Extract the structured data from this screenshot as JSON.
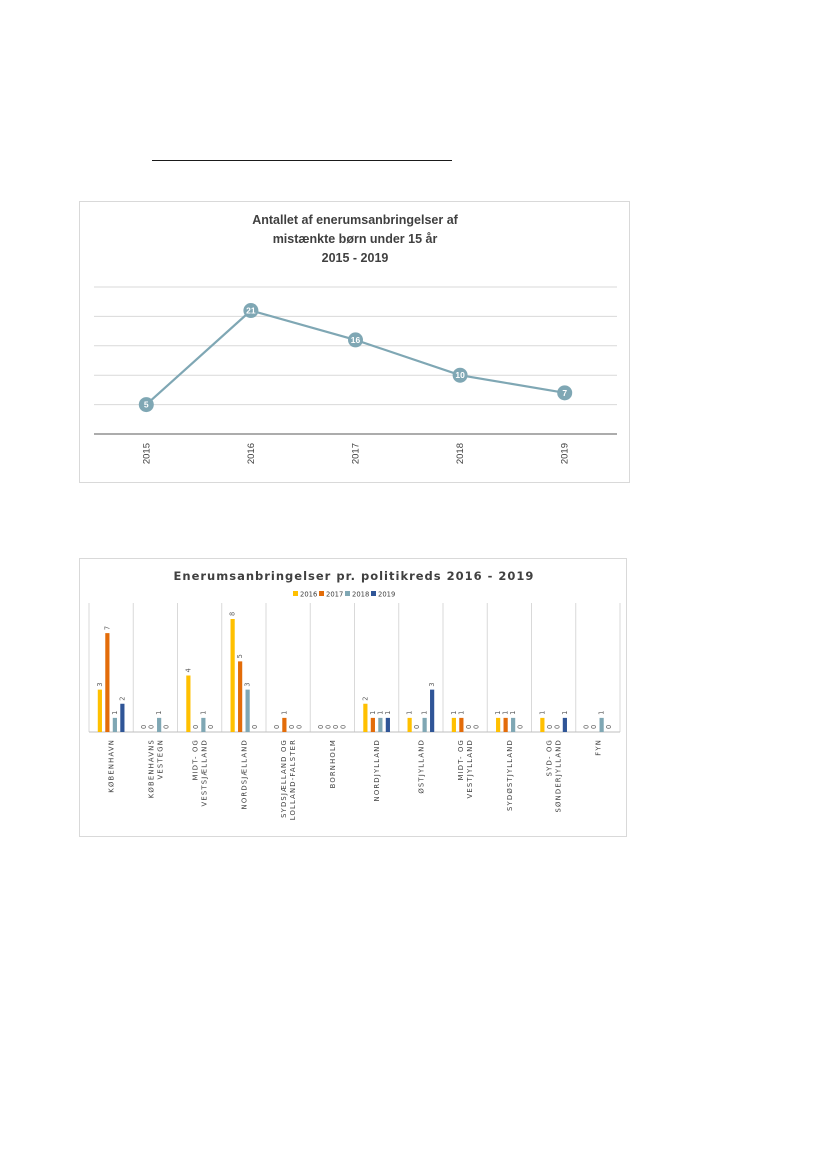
{
  "chart_data": [
    {
      "type": "line",
      "title_lines": [
        "Antallet af enerumsanbringelser af",
        "mistænkte børn under 15 år",
        "2015 - 2019"
      ],
      "categories": [
        "2015",
        "2016",
        "2017",
        "2018",
        "2019"
      ],
      "series": [
        {
          "values": [
            5,
            21,
            16,
            10,
            7
          ]
        }
      ],
      "ylim": [
        0,
        25
      ],
      "grid": true,
      "legend": "none",
      "data_labels": true,
      "colors": {
        "line": "#7fa7b4",
        "marker": "#7fa7b4",
        "label": "#ffffff"
      }
    },
    {
      "type": "bar",
      "title": "Enerumsanbringelser pr. politikreds 2016 - 2019",
      "categories": [
        [
          "KØBENHAVN"
        ],
        [
          "KØBENHAVNS",
          "VESTEGN"
        ],
        [
          "MIDT- OG",
          "VESTSJÆLLAND"
        ],
        [
          "NORDSJÆLLAND"
        ],
        [
          "SYDSJÆLLAND OG",
          "LOLLAND-FALSTER"
        ],
        [
          "BORNHOLM"
        ],
        [
          "NORDJYLLAND"
        ],
        [
          "ØSTJYLLAND"
        ],
        [
          "MIDT- OG",
          "VESTJYLLAND"
        ],
        [
          "SYDØSTJYLLAND"
        ],
        [
          "SYD- OG",
          "SØNDERJYLLAND"
        ],
        [
          "FYN"
        ]
      ],
      "series": [
        {
          "name": "2016",
          "color": "#ffc000",
          "values": [
            3,
            0,
            4,
            8,
            0,
            0,
            2,
            1,
            1,
            1,
            1,
            0
          ]
        },
        {
          "name": "2017",
          "color": "#e36c09",
          "values": [
            7,
            0,
            0,
            5,
            1,
            0,
            1,
            0,
            1,
            1,
            0,
            0
          ]
        },
        {
          "name": "2018",
          "color": "#7fa7b4",
          "values": [
            1,
            1,
            1,
            3,
            0,
            0,
            1,
            1,
            0,
            1,
            0,
            1
          ]
        },
        {
          "name": "2019",
          "color": "#2f5597",
          "values": [
            2,
            0,
            0,
            0,
            0,
            0,
            1,
            3,
            0,
            0,
            1,
            0
          ]
        }
      ],
      "ylim": [
        0,
        8
      ],
      "legend": "top",
      "data_labels": true
    }
  ]
}
